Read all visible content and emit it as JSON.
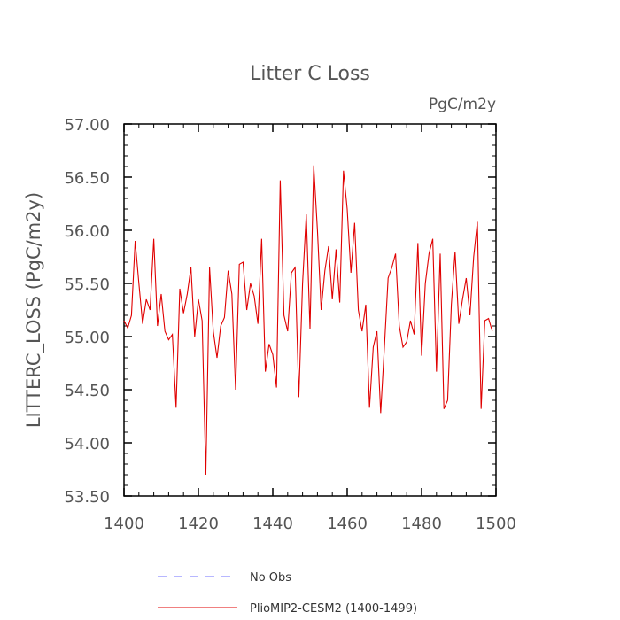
{
  "chart_data": {
    "type": "line",
    "title": "Litter C Loss",
    "subtitle": "PgC/m2y",
    "ylabel": "LITTERC_LOSS  (PgC/m2y)",
    "xlabel": "",
    "xlim": [
      1400,
      1500
    ],
    "ylim": [
      53.5,
      57.0
    ],
    "x_ticks": [
      1400,
      1420,
      1440,
      1460,
      1480,
      1500
    ],
    "x_tick_labels": [
      "1400",
      "1420",
      "1440",
      "1460",
      "1480",
      "1500"
    ],
    "y_ticks": [
      53.5,
      54.0,
      54.5,
      55.0,
      55.5,
      56.0,
      56.5,
      57.0
    ],
    "y_tick_labels": [
      "53.50",
      "54.00",
      "54.50",
      "55.00",
      "55.50",
      "56.00",
      "56.50",
      "57.00"
    ],
    "grid": false,
    "legend_position": "bottom",
    "series": [
      {
        "name": "No Obs",
        "color": "#6f6fff",
        "dash": "dashed",
        "values": []
      },
      {
        "name": "PlioMIP2-CESM2 (1400-1499)",
        "color": "#e00000",
        "dash": "solid",
        "x": [
          1400,
          1401,
          1402,
          1403,
          1404,
          1405,
          1406,
          1407,
          1408,
          1409,
          1410,
          1411,
          1412,
          1413,
          1414,
          1415,
          1416,
          1417,
          1418,
          1419,
          1420,
          1421,
          1422,
          1423,
          1424,
          1425,
          1426,
          1427,
          1428,
          1429,
          1430,
          1431,
          1432,
          1433,
          1434,
          1435,
          1436,
          1437,
          1438,
          1439,
          1440,
          1441,
          1442,
          1443,
          1444,
          1445,
          1446,
          1447,
          1448,
          1449,
          1450,
          1451,
          1452,
          1453,
          1454,
          1455,
          1456,
          1457,
          1458,
          1459,
          1460,
          1461,
          1462,
          1463,
          1464,
          1465,
          1466,
          1467,
          1468,
          1469,
          1470,
          1471,
          1472,
          1473,
          1474,
          1475,
          1476,
          1477,
          1478,
          1479,
          1480,
          1481,
          1482,
          1483,
          1484,
          1485,
          1486,
          1487,
          1488,
          1489,
          1490,
          1491,
          1492,
          1493,
          1494,
          1495,
          1496,
          1497,
          1498,
          1499
        ],
        "values": [
          55.15,
          55.08,
          55.2,
          55.9,
          55.5,
          55.12,
          55.35,
          55.25,
          55.92,
          55.1,
          55.4,
          55.05,
          54.97,
          55.02,
          54.33,
          55.45,
          55.22,
          55.4,
          55.65,
          55.0,
          55.35,
          55.15,
          53.7,
          55.65,
          55.05,
          54.8,
          55.1,
          55.18,
          55.62,
          55.4,
          54.5,
          55.68,
          55.7,
          55.25,
          55.5,
          55.38,
          55.12,
          55.92,
          54.67,
          54.93,
          54.83,
          54.52,
          56.47,
          55.2,
          55.05,
          55.6,
          55.65,
          54.43,
          55.5,
          56.15,
          55.07,
          56.61,
          56.0,
          55.25,
          55.62,
          55.85,
          55.35,
          55.82,
          55.32,
          56.56,
          56.2,
          55.6,
          56.07,
          55.25,
          55.05,
          55.3,
          54.33,
          54.9,
          55.05,
          54.28,
          54.9,
          55.55,
          55.65,
          55.78,
          55.1,
          54.9,
          54.95,
          55.15,
          55.02,
          55.88,
          54.82,
          55.5,
          55.78,
          55.92,
          54.67,
          55.78,
          54.32,
          54.4,
          55.3,
          55.8,
          55.12,
          55.35,
          55.55,
          55.2,
          55.75,
          56.08,
          54.32,
          55.15,
          55.17,
          55.05
        ]
      }
    ]
  }
}
